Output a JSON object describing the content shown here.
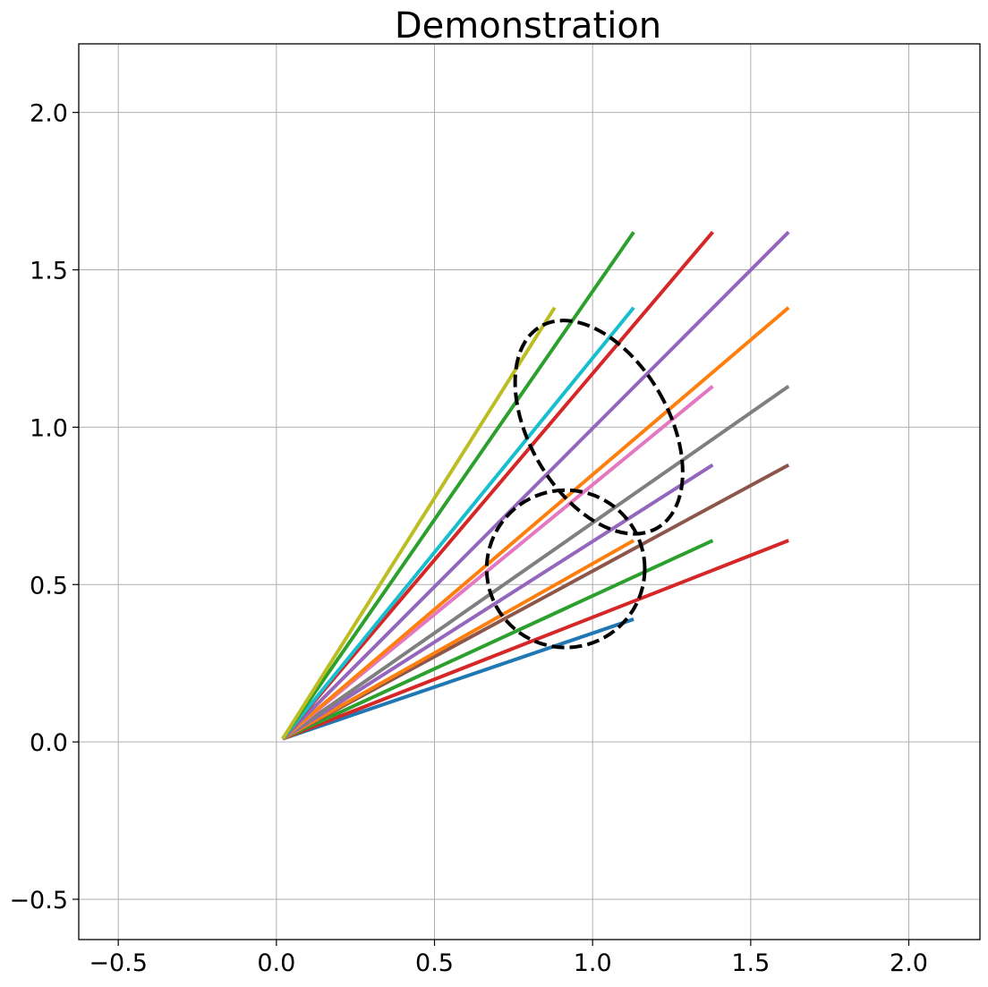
{
  "chart_data": {
    "type": "line",
    "title": "Demonstration",
    "xlabel": "",
    "ylabel": "",
    "xlim": [
      -0.625,
      2.225
    ],
    "ylim": [
      -0.628,
      2.218
    ],
    "xticks": [
      -0.5,
      0.0,
      0.5,
      1.0,
      1.5,
      2.0
    ],
    "yticks": [
      -0.5,
      0.0,
      0.5,
      1.0,
      1.5,
      2.0
    ],
    "xtick_labels": [
      "−0.5",
      "0.0",
      "0.5",
      "1.0",
      "1.5",
      "2.0"
    ],
    "ytick_labels": [
      "−0.5",
      "0.0",
      "0.5",
      "1.0",
      "1.5",
      "2.0"
    ],
    "grid": true,
    "legend": "none",
    "series": [
      {
        "color": "#1f77b4",
        "x": [
          0.02,
          1.13
        ],
        "y": [
          0.01,
          0.39
        ]
      },
      {
        "color": "#d62728",
        "x": [
          0.02,
          1.62
        ],
        "y": [
          0.01,
          0.64
        ]
      },
      {
        "color": "#2ca02c",
        "x": [
          0.02,
          1.38
        ],
        "y": [
          0.01,
          0.64
        ]
      },
      {
        "color": "#8c564b",
        "x": [
          0.02,
          1.62
        ],
        "y": [
          0.01,
          0.88
        ]
      },
      {
        "color": "#ff7f0e",
        "x": [
          0.02,
          1.13
        ],
        "y": [
          0.01,
          0.64
        ]
      },
      {
        "color": "#9467bd",
        "x": [
          0.02,
          1.38
        ],
        "y": [
          0.01,
          0.88
        ]
      },
      {
        "color": "#7f7f7f",
        "x": [
          0.02,
          1.62
        ],
        "y": [
          0.01,
          1.13
        ]
      },
      {
        "color": "#e377c2",
        "x": [
          0.02,
          1.38
        ],
        "y": [
          0.01,
          1.13
        ]
      },
      {
        "color": "#ff7f0e",
        "x": [
          0.02,
          1.62
        ],
        "y": [
          0.01,
          1.38
        ]
      },
      {
        "color": "#9467bd",
        "x": [
          0.02,
          1.62
        ],
        "y": [
          0.01,
          1.62
        ]
      },
      {
        "color": "#d62728",
        "x": [
          0.02,
          1.38
        ],
        "y": [
          0.01,
          1.62
        ]
      },
      {
        "color": "#17becf",
        "x": [
          0.02,
          1.13
        ],
        "y": [
          0.01,
          1.38
        ]
      },
      {
        "color": "#2ca02c",
        "x": [
          0.02,
          1.13
        ],
        "y": [
          0.01,
          1.62
        ]
      },
      {
        "color": "#bcbd22",
        "x": [
          0.02,
          0.88
        ],
        "y": [
          0.01,
          1.38
        ]
      }
    ],
    "ellipses": [
      {
        "cx": 1.02,
        "cy": 1.0,
        "rx": 0.22,
        "ry": 0.37,
        "rotation_deg": -30,
        "color": "#000000",
        "style": "dashed"
      },
      {
        "cx": 0.915,
        "cy": 0.55,
        "rx": 0.25,
        "ry": 0.25,
        "rotation_deg": 0,
        "color": "#000000",
        "style": "dashed"
      }
    ]
  }
}
